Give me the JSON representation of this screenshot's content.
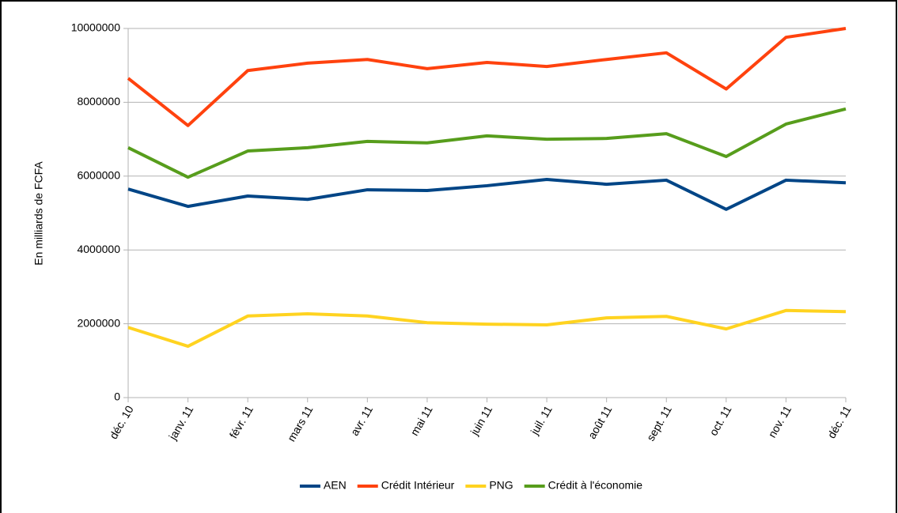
{
  "chart_data": {
    "type": "line",
    "y_label": "En milliards de FCFA",
    "categories": [
      "déc. 10",
      "janv. 11",
      "févr. 11",
      "mars 11",
      "avr. 11",
      "mai 11",
      "juin 11",
      "juil. 11",
      "août 11",
      "sept. 11",
      "oct. 11",
      "nov. 11",
      "déc. 11"
    ],
    "series": [
      {
        "name": "AEN",
        "color": "#004586",
        "values": [
          5650000,
          5180000,
          5460000,
          5370000,
          5630000,
          5610000,
          5740000,
          5910000,
          5780000,
          5890000,
          5100000,
          5890000,
          5820000
        ]
      },
      {
        "name": "Crédit Intérieur",
        "color": "#ff420e",
        "values": [
          8650000,
          7370000,
          8860000,
          9060000,
          9160000,
          8910000,
          9080000,
          8970000,
          9160000,
          9340000,
          8360000,
          9760000,
          10000000
        ]
      },
      {
        "name": "PNG",
        "color": "#ffd320",
        "values": [
          1900000,
          1390000,
          2210000,
          2270000,
          2210000,
          2030000,
          1990000,
          1970000,
          2160000,
          2200000,
          1860000,
          2360000,
          2330000
        ]
      },
      {
        "name": "Crédit à l'économie",
        "color": "#579d1c",
        "values": [
          6770000,
          5970000,
          6680000,
          6770000,
          6940000,
          6900000,
          7090000,
          7000000,
          7020000,
          7150000,
          6530000,
          7410000,
          7820000
        ]
      }
    ],
    "ylim": [
      0,
      10000000
    ],
    "yticks": [
      0,
      2000000,
      4000000,
      6000000,
      8000000,
      10000000
    ],
    "grid": true,
    "legend": "bottom"
  }
}
